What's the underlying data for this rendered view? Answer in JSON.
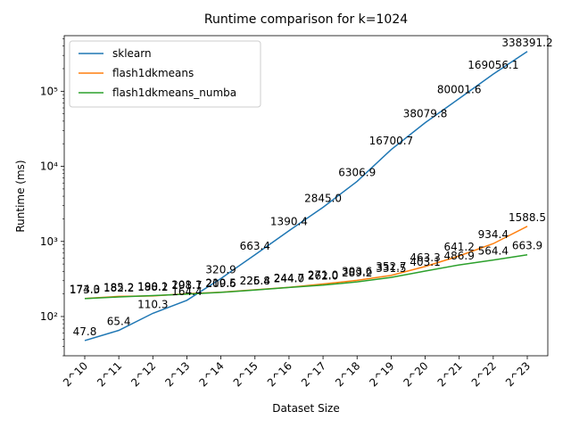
{
  "chart_data": {
    "type": "line",
    "title": "Runtime comparison for k=1024",
    "xlabel": "Dataset Size",
    "ylabel": "Runtime (ms)",
    "yscale": "log",
    "ylim": [
      30,
      550000
    ],
    "grid": false,
    "legend_position": "top-left",
    "categories": [
      "2^10",
      "2^11",
      "2^12",
      "2^13",
      "2^14",
      "2^15",
      "2^16",
      "2^17",
      "2^18",
      "2^19",
      "2^20",
      "2^21",
      "2^22",
      "2^23"
    ],
    "y_ticks": [
      {
        "value": 100,
        "label": "10²"
      },
      {
        "value": 1000,
        "label": "10³"
      },
      {
        "value": 10000,
        "label": "10⁴"
      },
      {
        "value": 100000,
        "label": "10⁵"
      }
    ],
    "series": [
      {
        "name": "sklearn",
        "color": "#1f77b4",
        "values": [
          47.8,
          65.4,
          110.3,
          164.4,
          320.9,
          663.4,
          1390.4,
          2845.0,
          6306.9,
          16700.7,
          38079.8,
          80001.6,
          169056.1,
          338391.2
        ],
        "labels": [
          "47.8",
          "65.4",
          "110.3",
          "164.4",
          "320.9",
          "663.4",
          "1390.4",
          "2845.0",
          "6306.9",
          "16700.7",
          "38079.8",
          "80001.6",
          "169056.1",
          "338391.2"
        ]
      },
      {
        "name": "flash1dkmeans",
        "color": "#ff7f0e",
        "values": [
          174.0,
          185.2,
          188.2,
          201.1,
          210.5,
          226.8,
          244.7,
          271.0,
          303.6,
          352.7,
          463.3,
          641.2,
          934.4,
          1588.5
        ],
        "labels": [
          "174.0",
          "185.2",
          "188.2",
          "201.1",
          "210.5",
          "226.8",
          "244.7",
          "271.0",
          "303.6",
          "352.7",
          "463.3",
          "641.2",
          "934.4",
          "1588.5"
        ]
      },
      {
        "name": "flash1dkmeans_numba",
        "color": "#2ca02c",
        "values": [
          173.3,
          182.2,
          190.1,
          198.7,
          209.6,
          225.4,
          244.0,
          262.0,
          289.2,
          331.5,
          403.1,
          486.9,
          564.4,
          663.9
        ],
        "labels": [
          "173.3",
          "182.2",
          "190.1",
          "198.7",
          "209.6",
          "225.4",
          "244.0",
          "262.0",
          "289.2",
          "331.5",
          "403.1",
          "486.9",
          "564.4",
          "663.9"
        ]
      }
    ]
  }
}
